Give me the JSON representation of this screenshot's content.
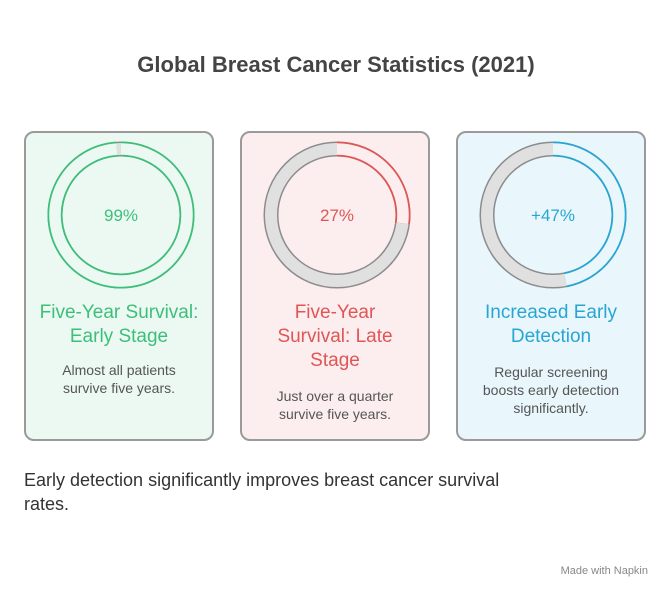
{
  "title": "Global Breast Cancer Statistics (2021)",
  "chart_data": [
    {
      "type": "donut",
      "title": "Five-Year Survival: Early Stage",
      "values": [
        99
      ],
      "value_labels": [
        "99%"
      ],
      "caption": "Almost all patients survive five years.",
      "color": "#3dbf7a"
    },
    {
      "type": "donut",
      "title": "Five-Year Survival: Late Stage",
      "values": [
        27
      ],
      "value_labels": [
        "27%"
      ],
      "caption": "Just over a quarter survive five years.",
      "color": "#e05555"
    },
    {
      "type": "donut",
      "title": "Increased Early Detection",
      "values": [
        47
      ],
      "value_labels": [
        "+47%"
      ],
      "caption": "Regular screening boosts early detection significantly.",
      "color": "#27a6d4"
    }
  ],
  "summary": "Early detection significantly improves breast cancer survival rates.",
  "watermark": "Made with Napkin"
}
